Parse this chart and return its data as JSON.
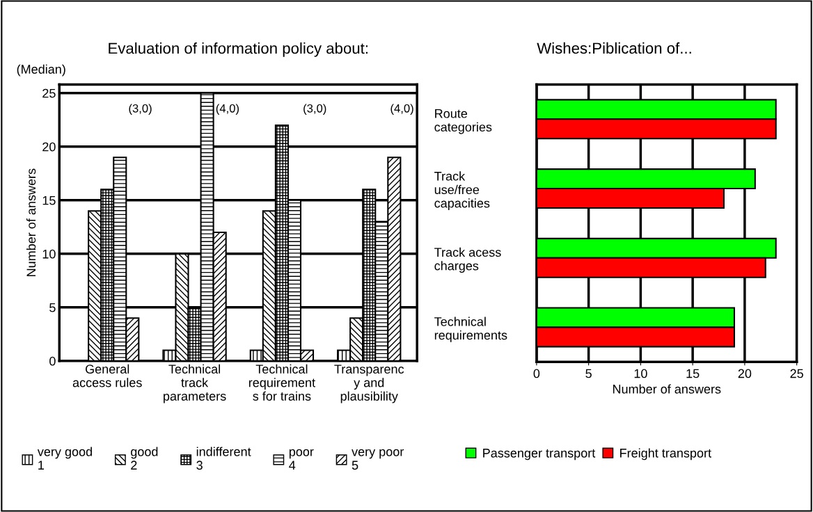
{
  "chart_data": [
    {
      "type": "bar",
      "title": "Evaluation of information policy about:",
      "subtitle": "(Median)",
      "ylabel": "Number of answers",
      "categories": [
        "General access rules",
        "Technical track parameters",
        "Technical requirement s for trains",
        "Transparenc y and plausibility"
      ],
      "series": [
        {
          "name": "very good\n1",
          "color": "#000000",
          "values": [
            0,
            1,
            1,
            1
          ]
        },
        {
          "name": "good\n2",
          "color": "#000000",
          "values": [
            14,
            10,
            14,
            4
          ]
        },
        {
          "name": "indifferent\n3",
          "color": "#000000",
          "values": [
            16,
            5,
            22,
            16
          ]
        },
        {
          "name": "poor\n4",
          "color": "#000000",
          "values": [
            19,
            25,
            15,
            13
          ]
        },
        {
          "name": "very poor\n5",
          "color": "#000000",
          "values": [
            4,
            12,
            1,
            19
          ]
        }
      ],
      "annotations": [
        "(3,0)",
        "(4,0)",
        "(3,0)",
        "(4,0)"
      ],
      "ylim": [
        0,
        25.8
      ],
      "yticks": [
        0,
        5,
        10,
        15,
        20,
        25
      ],
      "grid": "y",
      "legend": "bottom"
    },
    {
      "type": "bar",
      "orientation": "horizontal",
      "title": "Wishes:Piblication of...",
      "xlabel": "Number of answers",
      "categories": [
        "Route categories",
        "Track use/free capacities",
        "Track acess charges",
        "Technical requirements"
      ],
      "series": [
        {
          "name": "Passenger transport",
          "color": "#00ff00",
          "values": [
            23,
            21,
            23,
            19
          ]
        },
        {
          "name": "Freight transport",
          "color": "#ff0000",
          "values": [
            23,
            18,
            22,
            19
          ]
        }
      ],
      "xlim": [
        0,
        25
      ],
      "xticks": [
        0,
        5,
        10,
        15,
        20,
        25
      ],
      "grid": "x",
      "legend": "bottom"
    }
  ]
}
